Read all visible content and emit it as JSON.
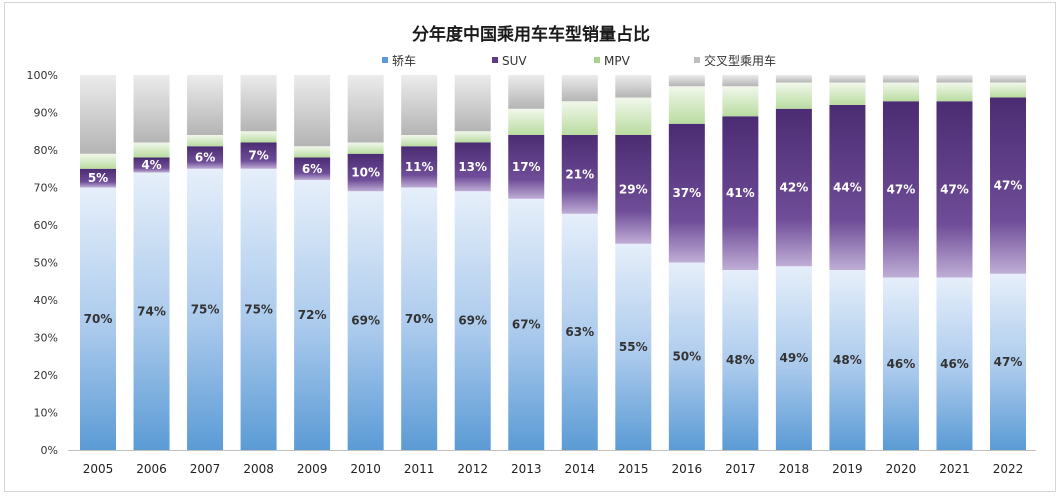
{
  "chart_data": {
    "type": "bar",
    "stacked": true,
    "title": "分年度中国乘用车车型销量占比",
    "xlabel": "",
    "ylabel": "",
    "ylim": [
      0,
      100
    ],
    "y_ticks": [
      "0%",
      "10%",
      "20%",
      "30%",
      "40%",
      "50%",
      "60%",
      "70%",
      "80%",
      "90%",
      "100%"
    ],
    "legend_position": "top",
    "grid": false,
    "categories": [
      "2005",
      "2006",
      "2007",
      "2008",
      "2009",
      "2010",
      "2011",
      "2012",
      "2013",
      "2014",
      "2015",
      "2016",
      "2017",
      "2018",
      "2019",
      "2020",
      "2021",
      "2022"
    ],
    "series": [
      {
        "name": "轿车",
        "color": "#5b9bd5",
        "values": [
          70,
          74,
          75,
          75,
          72,
          69,
          70,
          69,
          67,
          63,
          55,
          50,
          48,
          49,
          48,
          46,
          46,
          47
        ],
        "labels": [
          "70%",
          "74%",
          "75%",
          "75%",
          "72%",
          "69%",
          "70%",
          "69%",
          "67%",
          "63%",
          "55%",
          "50%",
          "48%",
          "49%",
          "48%",
          "46%",
          "46%",
          "47%"
        ]
      },
      {
        "name": "SUV",
        "color": "#5e3a87",
        "values": [
          5,
          4,
          6,
          7,
          6,
          10,
          11,
          13,
          17,
          21,
          29,
          37,
          41,
          42,
          44,
          47,
          47,
          47
        ],
        "labels": [
          "5%",
          "4%",
          "6%",
          "7%",
          "6%",
          "10%",
          "11%",
          "13%",
          "17%",
          "21%",
          "29%",
          "37%",
          "41%",
          "42%",
          "44%",
          "47%",
          "47%",
          "47%"
        ]
      },
      {
        "name": "MPV",
        "color": "#a9d18e",
        "values": [
          4,
          4,
          3,
          3,
          3,
          3,
          3,
          3,
          7,
          9,
          10,
          10,
          8,
          7,
          6,
          5,
          5,
          4
        ]
      },
      {
        "name": "交叉型乘用车",
        "color": "#bfbfbf",
        "values": [
          21,
          18,
          16,
          15,
          19,
          18,
          16,
          15,
          9,
          7,
          6,
          3,
          3,
          2,
          2,
          2,
          2,
          2
        ]
      }
    ]
  }
}
